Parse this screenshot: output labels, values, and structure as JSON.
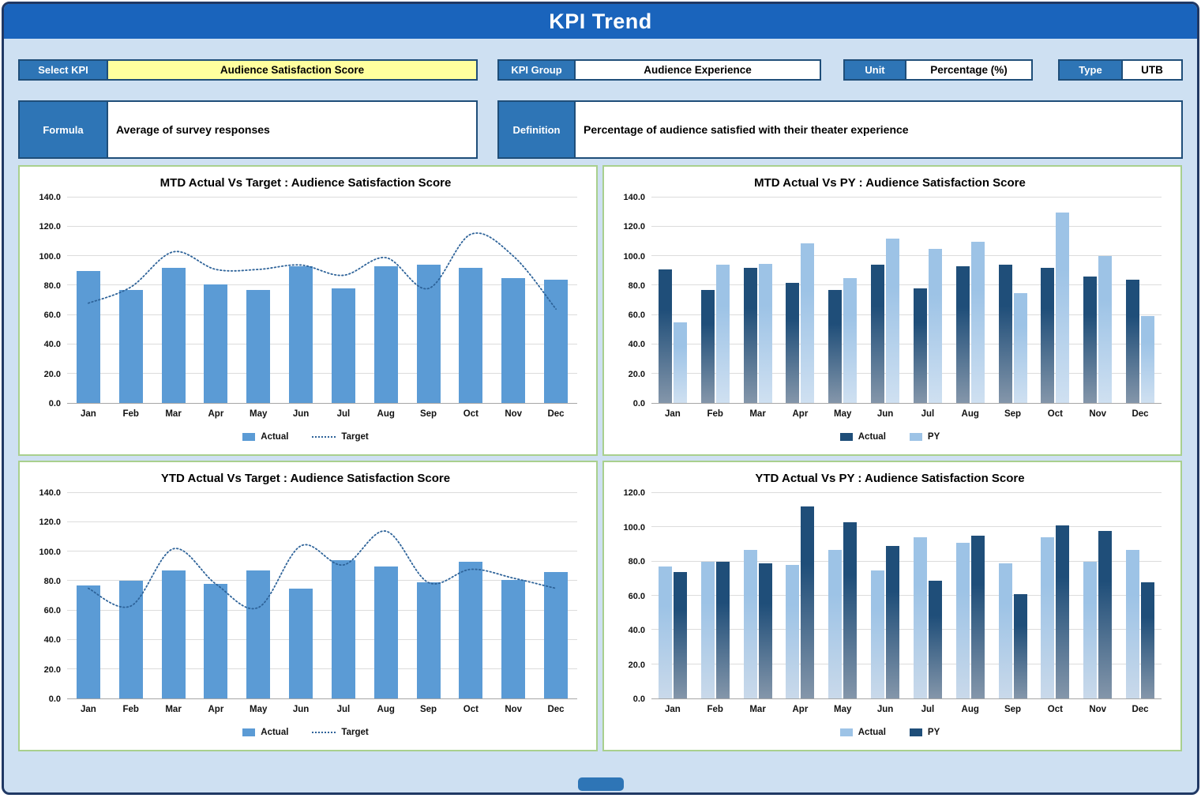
{
  "page_title": "KPI Trend",
  "fields": {
    "select_kpi": {
      "label": "Select KPI",
      "value": "Audience Satisfaction Score"
    },
    "kpi_group": {
      "label": "KPI Group",
      "value": "Audience Experience"
    },
    "unit": {
      "label": "Unit",
      "value": "Percentage (%)"
    },
    "type": {
      "label": "Type",
      "value": "UTB"
    },
    "formula": {
      "label": "Formula",
      "value": "Average of survey responses"
    },
    "definition": {
      "label": "Definition",
      "value": "Percentage of audience satisfied with their theater experience"
    }
  },
  "colors": {
    "header_bg": "#1A64BC",
    "label_bg": "#2E75B6",
    "field_border": "#1F4E79",
    "select_value_bg": "#FFFF9E",
    "page_bg": "#CEE0F2",
    "frame_border": "#203864",
    "panel_border": "#A9D08E",
    "actual_light_blue": "#5B9BD5",
    "actual_dark_navy": "#1F4E79",
    "py_light_blue": "#9DC3E6",
    "target_line": "#2E6399",
    "gridline": "#DCDCDC"
  },
  "chart_data": [
    {
      "type": "bar",
      "title": "MTD Actual Vs Target : Audience Satisfaction Score",
      "categories": [
        "Jan",
        "Feb",
        "Mar",
        "Apr",
        "May",
        "Jun",
        "Jul",
        "Aug",
        "Sep",
        "Oct",
        "Nov",
        "Dec"
      ],
      "ylim": [
        0,
        140
      ],
      "ytick_step": 20,
      "grid": true,
      "legend_position": "bottom",
      "series": [
        {
          "name": "Actual",
          "type": "bar",
          "color_top": "#5B9BD5",
          "color_bottom": "#5B9BD5",
          "values": [
            90,
            77,
            92,
            81,
            77,
            93,
            78,
            93,
            94,
            92,
            85,
            84
          ]
        },
        {
          "name": "Target",
          "type": "line",
          "line_style": "dotted",
          "color": "#2E6399",
          "values": [
            68,
            79,
            103,
            91,
            91,
            94,
            87,
            99,
            78,
            115,
            100,
            64
          ]
        }
      ]
    },
    {
      "type": "bar",
      "title": "MTD Actual Vs PY : Audience Satisfaction Score",
      "categories": [
        "Jan",
        "Feb",
        "Mar",
        "Apr",
        "May",
        "Jun",
        "Jul",
        "Aug",
        "Sep",
        "Oct",
        "Nov",
        "Dec"
      ],
      "ylim": [
        0,
        140
      ],
      "ytick_step": 20,
      "grid": true,
      "legend_position": "bottom",
      "series": [
        {
          "name": "Actual",
          "type": "bar",
          "color_top": "#1F4E79",
          "color_bottom": "#8496AA",
          "values": [
            91,
            77,
            92,
            82,
            77,
            94,
            78,
            93,
            94,
            92,
            86,
            84
          ]
        },
        {
          "name": "PY",
          "type": "bar",
          "color_top": "#9DC3E6",
          "color_bottom": "#CFE0F1",
          "values": [
            55,
            94,
            95,
            109,
            85,
            112,
            105,
            110,
            75,
            130,
            100,
            59
          ]
        }
      ]
    },
    {
      "type": "bar",
      "title": "YTD Actual Vs Target : Audience Satisfaction Score",
      "categories": [
        "Jan",
        "Feb",
        "Mar",
        "Apr",
        "May",
        "Jun",
        "Jul",
        "Aug",
        "Sep",
        "Oct",
        "Nov",
        "Dec"
      ],
      "ylim": [
        0,
        140
      ],
      "ytick_step": 20,
      "grid": true,
      "legend_position": "bottom",
      "series": [
        {
          "name": "Actual",
          "type": "bar",
          "color_top": "#5B9BD5",
          "color_bottom": "#5B9BD5",
          "values": [
            77,
            80,
            87,
            78,
            87,
            75,
            94,
            90,
            79,
            93,
            81,
            86
          ]
        },
        {
          "name": "Target",
          "type": "line",
          "line_style": "dotted",
          "color": "#2E6399",
          "values": [
            75,
            63,
            102,
            78,
            62,
            104,
            91,
            114,
            79,
            88,
            82,
            75
          ]
        }
      ]
    },
    {
      "type": "bar",
      "title": "YTD Actual Vs PY : Audience Satisfaction Score",
      "categories": [
        "Jan",
        "Feb",
        "Mar",
        "Apr",
        "May",
        "Jun",
        "Jul",
        "Aug",
        "Sep",
        "Oct",
        "Nov",
        "Dec"
      ],
      "ylim": [
        0,
        120
      ],
      "ytick_step": 20,
      "grid": true,
      "legend_position": "bottom",
      "series": [
        {
          "name": "Actual",
          "type": "bar",
          "color_top": "#9DC3E6",
          "color_bottom": "#C9D9EA",
          "values": [
            77,
            80,
            87,
            78,
            87,
            75,
            94,
            91,
            79,
            94,
            80,
            87
          ]
        },
        {
          "name": "PY",
          "type": "bar",
          "color_top": "#1F4E79",
          "color_bottom": "#8496AA",
          "values": [
            74,
            80,
            79,
            112,
            103,
            89,
            69,
            95,
            61,
            101,
            98,
            68
          ]
        }
      ]
    }
  ]
}
